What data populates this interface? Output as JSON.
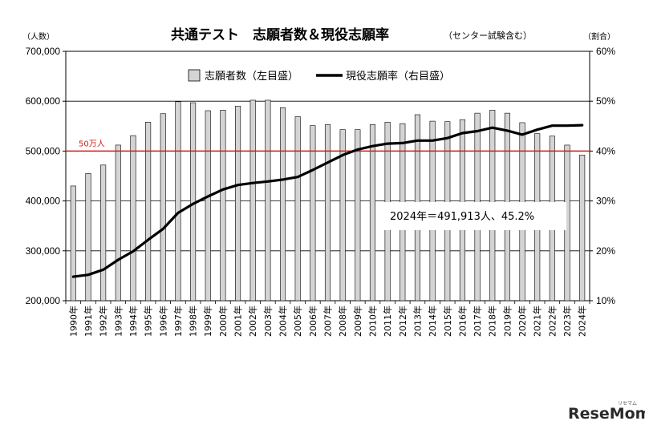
{
  "chart_data": {
    "type": "bar",
    "title": "共通テスト　志願者数＆現役志願率",
    "subtitle": "（センター試験含む）",
    "left_unit": "（人数）",
    "right_unit": "（割合）",
    "categories": [
      "1990年",
      "1991年",
      "1992年",
      "1993年",
      "1994年",
      "1995年",
      "1996年",
      "1997年",
      "1998年",
      "1999年",
      "2000年",
      "2001年",
      "2002年",
      "2003年",
      "2004年",
      "2005年",
      "2006年",
      "2007年",
      "2008年",
      "2009年",
      "2010年",
      "2011年",
      "2012年",
      "2013年",
      "2014年",
      "2015年",
      "2016年",
      "2017年",
      "2018年",
      "2019年",
      "2020年",
      "2021年",
      "2022年",
      "2023年",
      "2024年"
    ],
    "y_left": {
      "min": 200000,
      "max": 700000,
      "ticks": [
        "200,000",
        "300,000",
        "400,000",
        "500,000",
        "600,000",
        "700,000"
      ]
    },
    "y_right": {
      "min": 10,
      "max": 60,
      "ticks": [
        "10%",
        "20%",
        "30%",
        "40%",
        "50%",
        "60%"
      ]
    },
    "series": [
      {
        "name": "志願者数（左目盛）",
        "type": "bar",
        "axis": "left",
        "color": "#d4d4d4",
        "values": [
          430000,
          455000,
          472000,
          512000,
          531000,
          558000,
          575000,
          599000,
          597000,
          581000,
          582000,
          590000,
          602000,
          602000,
          587000,
          569000,
          551000,
          553000,
          543000,
          543000,
          553000,
          558000,
          555000,
          573000,
          560000,
          559000,
          563000,
          576000,
          582000,
          576000,
          557000,
          535000,
          530000,
          512000,
          491913
        ]
      },
      {
        "name": "現役志願率（右目盛）",
        "type": "line",
        "axis": "right",
        "color": "#000000",
        "values": [
          14.8,
          15.2,
          16.2,
          18.2,
          19.9,
          22.2,
          24.4,
          27.6,
          29.4,
          30.9,
          32.3,
          33.2,
          33.6,
          33.9,
          34.3,
          34.8,
          36.2,
          37.7,
          39.2,
          40.3,
          41.0,
          41.5,
          41.6,
          42.1,
          42.1,
          42.6,
          43.6,
          44.0,
          44.7,
          44.1,
          43.3,
          44.3,
          45.1,
          45.1,
          45.2
        ]
      }
    ],
    "reference_line": {
      "label": "50万人",
      "value": 500000,
      "color": "#d21a1a"
    },
    "annotation": "2024年＝491,913人、45.2%",
    "legend_position": "top-center",
    "grid": true
  },
  "watermark": {
    "text": "ReseMom",
    "small_text": "リセマム"
  }
}
